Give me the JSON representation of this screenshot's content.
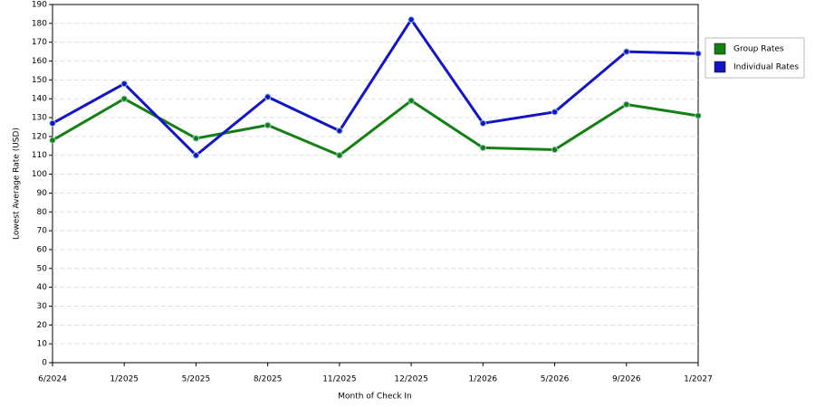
{
  "chart_data": {
    "type": "line",
    "x_label": "Month of Check In",
    "y_label": "Lowest Average Rate (USD)",
    "categories": [
      "6/2024",
      "1/2025",
      "5/2025",
      "8/2025",
      "11/2025",
      "12/2025",
      "1/2026",
      "5/2026",
      "9/2026",
      "1/2027"
    ],
    "series": [
      {
        "name": "Group Rates",
        "color": "#138013",
        "values": [
          118,
          140,
          119,
          126,
          110,
          139,
          114,
          113,
          137,
          131
        ]
      },
      {
        "name": "Individual Rates",
        "color": "#1313c8",
        "values": [
          127,
          148,
          110,
          141,
          123,
          182,
          127,
          133,
          165,
          164
        ]
      }
    ],
    "ylim": [
      0,
      190
    ],
    "yticks": [
      0,
      10,
      20,
      30,
      40,
      50,
      60,
      70,
      80,
      90,
      100,
      110,
      120,
      130,
      140,
      150,
      160,
      170,
      180,
      190
    ],
    "grid": true,
    "legend": "right"
  }
}
